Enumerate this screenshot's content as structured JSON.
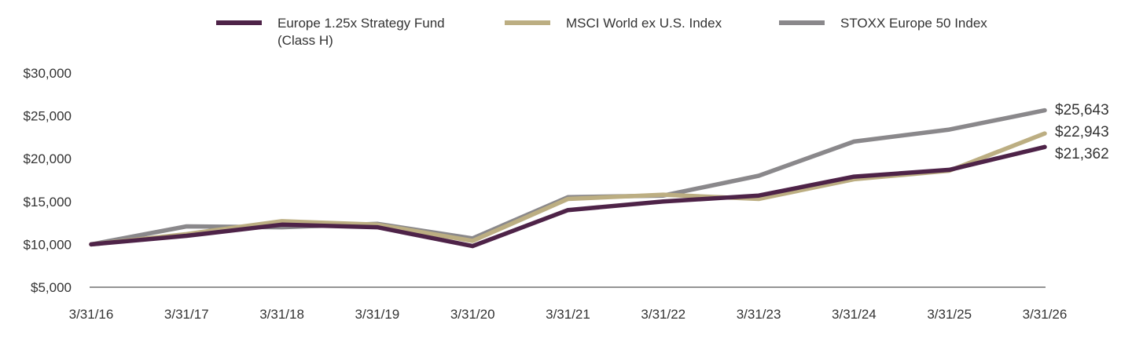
{
  "chart_data": {
    "type": "line",
    "title": "",
    "xlabel": "",
    "ylabel": "",
    "x": [
      "3/31/16",
      "3/31/17",
      "3/31/18",
      "3/31/19",
      "3/31/20",
      "3/31/21",
      "3/31/22",
      "3/31/23",
      "3/31/24",
      "3/31/25",
      "3/31/26"
    ],
    "y_ticks": [
      "$5,000",
      "$10,000",
      "$15,000",
      "$20,000",
      "$25,000",
      "$30,000"
    ],
    "y_tick_values": [
      5000,
      10000,
      15000,
      20000,
      25000,
      30000
    ],
    "ylim": [
      5000,
      30000
    ],
    "grid": false,
    "legend_position": "top",
    "series": [
      {
        "name_lines": [
          "Europe 1.25x Strategy Fund",
          "(Class H)"
        ],
        "color": "#4e2348",
        "values": [
          10000,
          11000,
          12300,
          12000,
          9800,
          14000,
          15000,
          15700,
          17900,
          18700,
          21362
        ],
        "end_label": "$21,362"
      },
      {
        "name_lines": [
          "MSCI World ex U.S. Index"
        ],
        "color": "#bcae82",
        "values": [
          10000,
          11200,
          12700,
          12300,
          10400,
          15300,
          15800,
          15300,
          17600,
          18600,
          22943
        ],
        "end_label": "$22,943"
      },
      {
        "name_lines": [
          "STOXX Europe 50 Index"
        ],
        "color": "#8a888b",
        "values": [
          10000,
          12100,
          12000,
          12400,
          10700,
          15500,
          15700,
          18000,
          22000,
          23400,
          25643
        ],
        "end_label": "$25,643"
      }
    ]
  }
}
